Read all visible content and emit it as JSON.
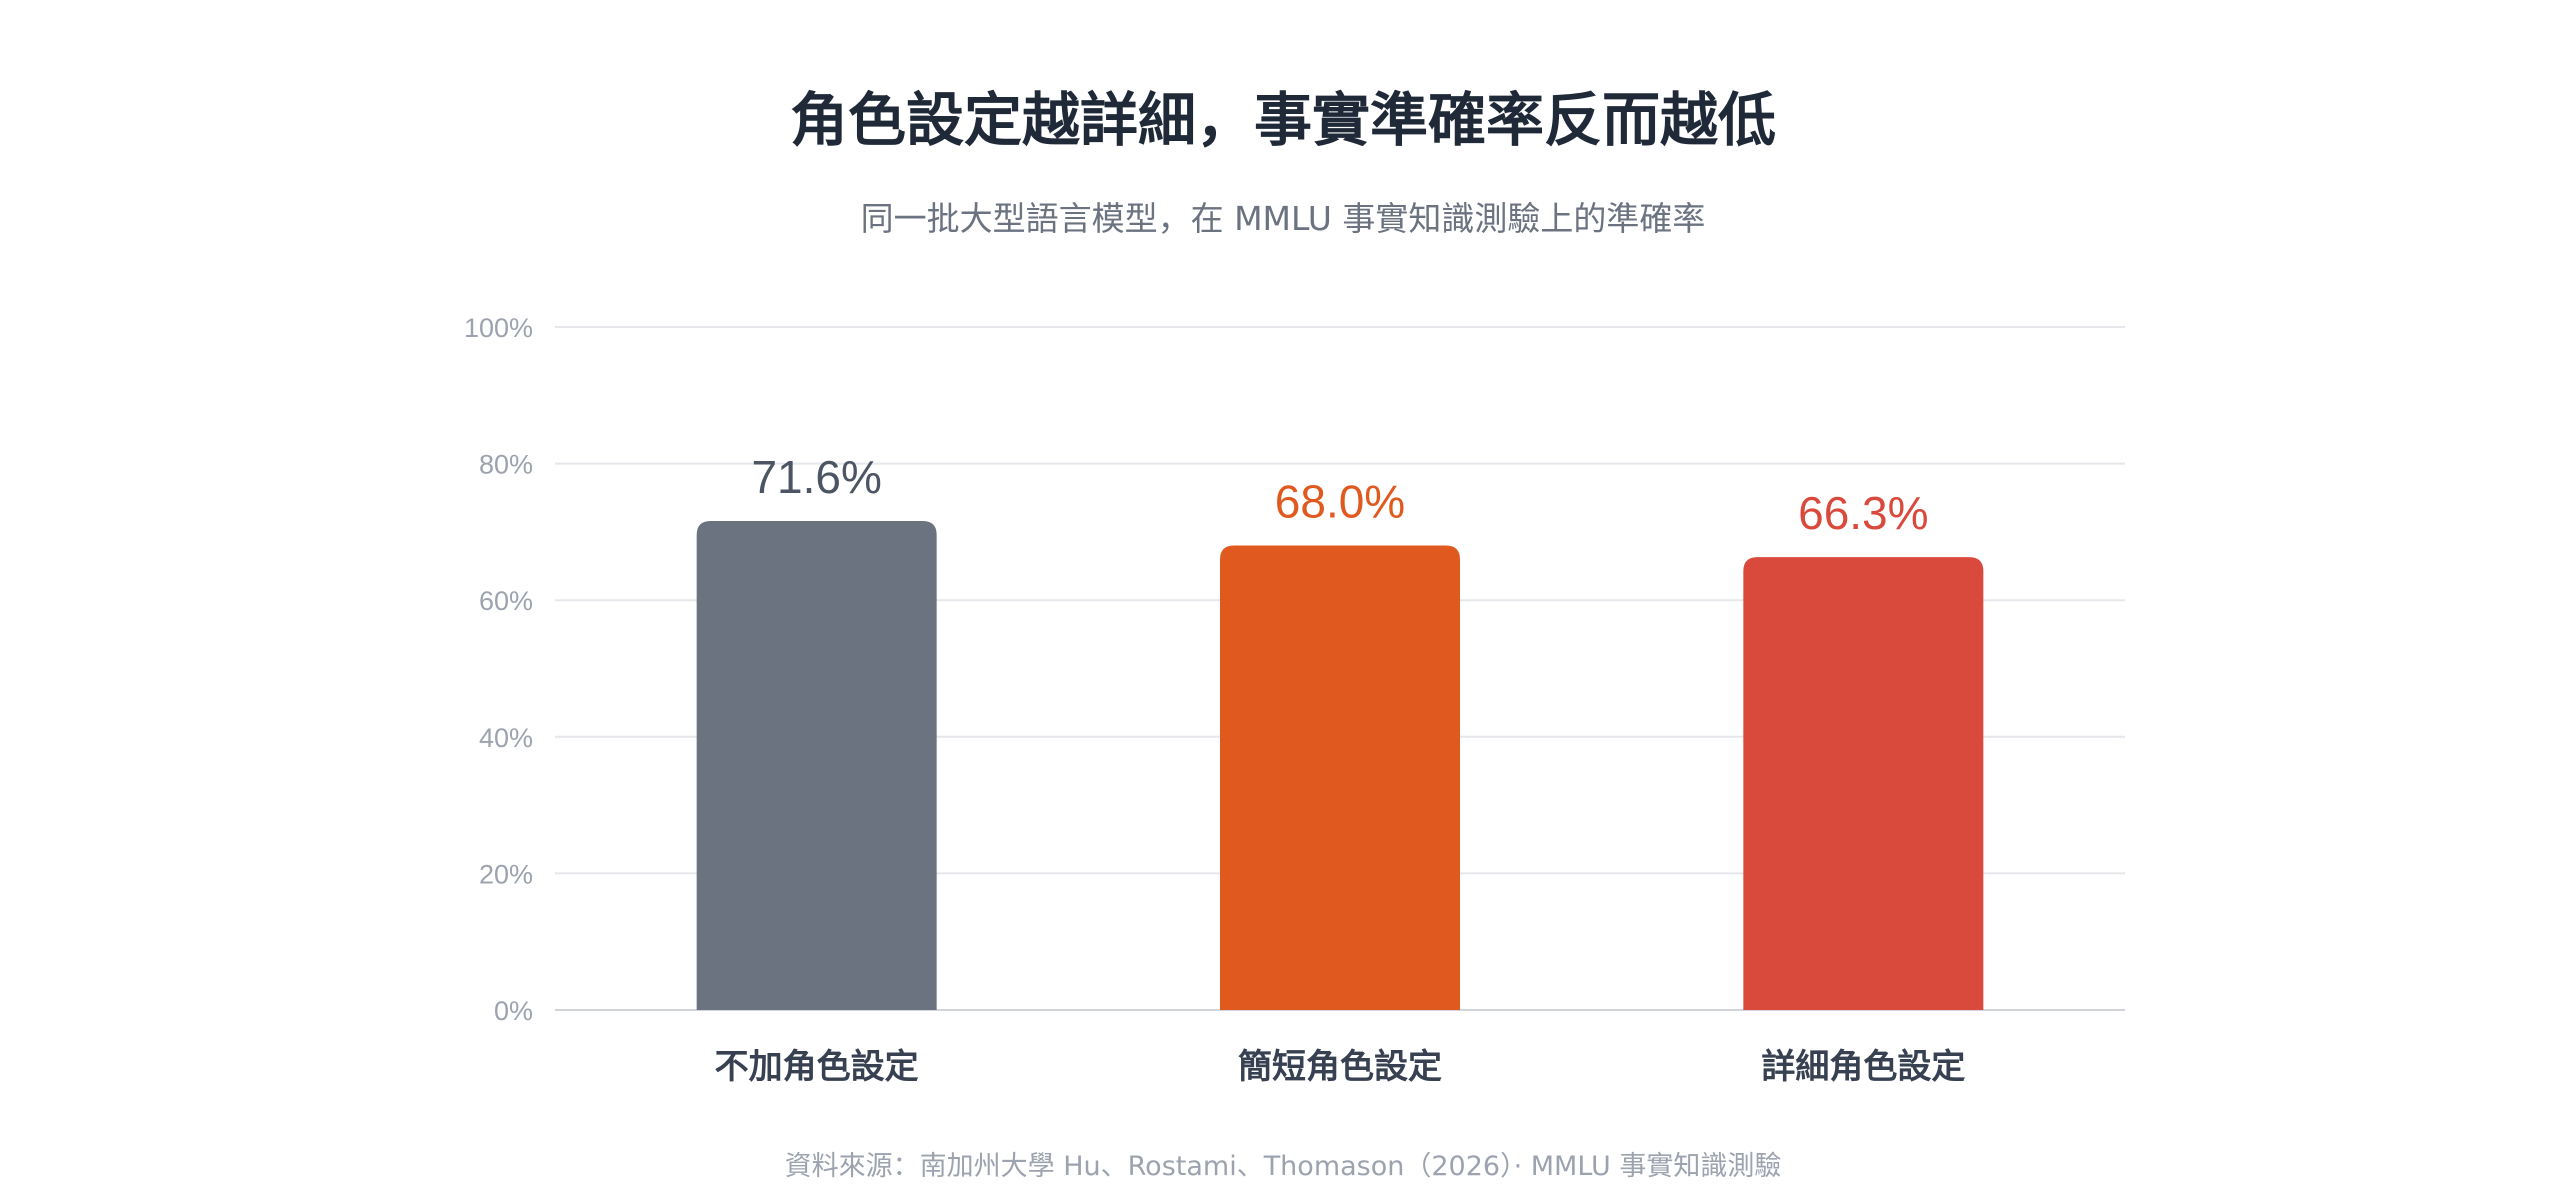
{
  "chart_data": {
    "type": "bar",
    "title": "角色設定越詳細，事實準確率反而越低",
    "subtitle": "同一批大型語言模型，在 MMLU 事實知識測驗上的準確率",
    "categories": [
      "不加角色設定",
      "簡短角色設定",
      "詳細角色設定"
    ],
    "values": [
      71.6,
      68.0,
      66.3
    ],
    "value_labels": [
      "71.6%",
      "68.0%",
      "66.3%"
    ],
    "bar_colors": [
      "#6b7280",
      "#e05a1f",
      "#d9493c"
    ],
    "label_colors": [
      "#4b5563",
      "#e05a1f",
      "#d9493c"
    ],
    "ylim": [
      0,
      100
    ],
    "yticks": [
      0,
      20,
      40,
      60,
      80,
      100
    ],
    "ytick_labels": [
      "0%",
      "20%",
      "40%",
      "60%",
      "80%",
      "100%"
    ],
    "grid": true,
    "xlabel": "",
    "ylabel": "",
    "source": "資料來源：南加州大學 Hu、Rostami、Thomason（2026）· MMLU 事實知識測驗"
  }
}
